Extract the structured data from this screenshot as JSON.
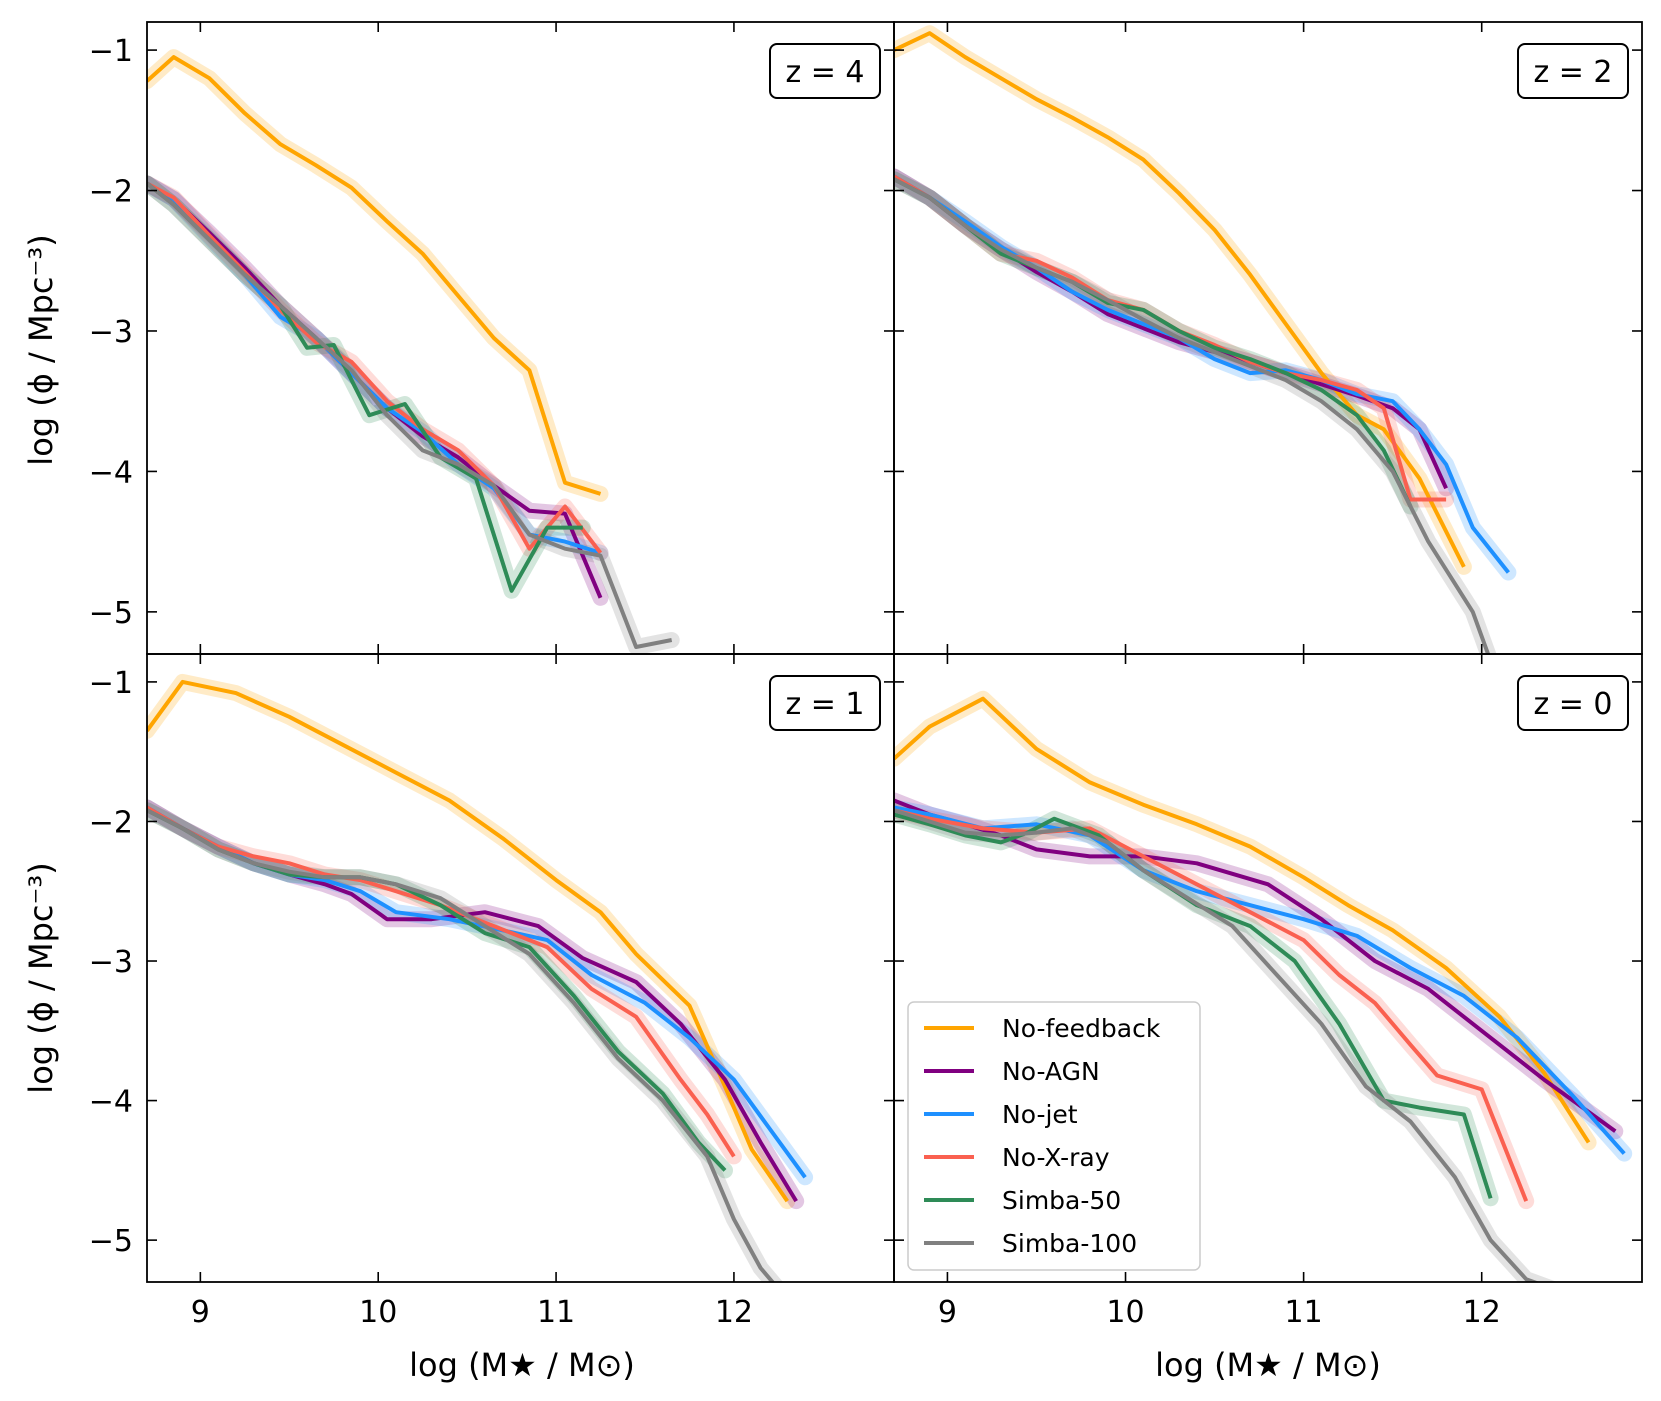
{
  "chart_data": {
    "type": "line",
    "layout": "2x2 grid, shared axes",
    "xlabel": "log (M★ / M⊙)",
    "ylabel": "log (ϕ / Mpc⁻³)",
    "xlim": [
      8.7,
      12.9
    ],
    "ylim": [
      -5.3,
      -0.8
    ],
    "xticks": [
      9,
      10,
      11,
      12
    ],
    "yticks": [
      -1,
      -2,
      -3,
      -4,
      -5
    ],
    "xtick_labels": [
      "9",
      "10",
      "11",
      "12"
    ],
    "ytick_labels": [
      "−1",
      "−2",
      "−3",
      "−4",
      "−5"
    ],
    "legend": {
      "placement": "lower-left of bottom-right panel",
      "entries": [
        "No-feedback",
        "No-AGN",
        "No-jet",
        "No-X-ray",
        "Simba-50",
        "Simba-100"
      ]
    },
    "colors": {
      "No-feedback": "#ffa500",
      "No-AGN": "#800080",
      "No-jet": "#1e90ff",
      "No-X-ray": "#fa6050",
      "Simba-50": "#2e8b57",
      "Simba-100": "#808080"
    },
    "panels": [
      {
        "label": "z = 4",
        "series": [
          {
            "name": "No-feedback",
            "x": [
              8.7,
              8.85,
              9.05,
              9.25,
              9.45,
              9.65,
              9.85,
              10.05,
              10.25,
              10.45,
              10.65,
              10.85,
              11.05,
              11.25
            ],
            "y": [
              -1.22,
              -1.05,
              -1.2,
              -1.45,
              -1.67,
              -1.82,
              -1.98,
              -2.22,
              -2.45,
              -2.75,
              -3.05,
              -3.28,
              -4.08,
              -4.16
            ]
          },
          {
            "name": "No-AGN",
            "x": [
              8.7,
              8.85,
              9.05,
              9.25,
              9.45,
              9.65,
              9.85,
              10.05,
              10.25,
              10.45,
              10.65,
              10.85,
              11.05,
              11.25
            ],
            "y": [
              -1.95,
              -2.06,
              -2.3,
              -2.55,
              -2.82,
              -3.05,
              -3.3,
              -3.55,
              -3.75,
              -3.9,
              -4.1,
              -4.28,
              -4.3,
              -4.9
            ]
          },
          {
            "name": "No-jet",
            "x": [
              8.7,
              8.85,
              9.05,
              9.25,
              9.45,
              9.65,
              9.85,
              10.05,
              10.25,
              10.45,
              10.65,
              10.85,
              11.05,
              11.25
            ],
            "y": [
              -1.95,
              -2.06,
              -2.33,
              -2.6,
              -2.9,
              -3.05,
              -3.3,
              -3.55,
              -3.72,
              -3.95,
              -4.12,
              -4.45,
              -4.5,
              -4.58
            ]
          },
          {
            "name": "No-X-ray",
            "x": [
              8.7,
              8.85,
              9.05,
              9.25,
              9.45,
              9.65,
              9.85,
              10.05,
              10.25,
              10.45,
              10.65,
              10.85,
              11.05,
              11.25
            ],
            "y": [
              -1.95,
              -2.05,
              -2.32,
              -2.58,
              -2.85,
              -3.08,
              -3.22,
              -3.5,
              -3.7,
              -3.85,
              -4.1,
              -4.55,
              -4.25,
              -4.58
            ]
          },
          {
            "name": "Simba-50",
            "x": [
              8.7,
              8.85,
              9.05,
              9.25,
              9.45,
              9.6,
              9.75,
              9.95,
              10.15,
              10.35,
              10.55,
              10.75,
              10.95,
              11.15
            ],
            "y": [
              -1.95,
              -2.1,
              -2.35,
              -2.6,
              -2.82,
              -3.12,
              -3.1,
              -3.6,
              -3.52,
              -3.9,
              -4.05,
              -4.85,
              -4.4,
              -4.4
            ]
          },
          {
            "name": "Simba-100",
            "x": [
              8.7,
              8.85,
              9.05,
              9.25,
              9.45,
              9.65,
              9.85,
              10.05,
              10.25,
              10.45,
              10.65,
              10.85,
              11.05,
              11.25,
              11.45,
              11.65
            ],
            "y": [
              -1.95,
              -2.1,
              -2.35,
              -2.6,
              -2.82,
              -3.05,
              -3.28,
              -3.6,
              -3.85,
              -3.95,
              -4.1,
              -4.45,
              -4.55,
              -4.6,
              -5.25,
              -5.2
            ]
          }
        ]
      },
      {
        "label": "z = 2",
        "series": [
          {
            "name": "No-feedback",
            "x": [
              8.7,
              8.9,
              9.1,
              9.3,
              9.5,
              9.7,
              9.9,
              10.1,
              10.3,
              10.5,
              10.7,
              10.9,
              11.1,
              11.3,
              11.45,
              11.65,
              11.9
            ],
            "y": [
              -1.0,
              -0.88,
              -1.05,
              -1.2,
              -1.35,
              -1.48,
              -1.62,
              -1.78,
              -2.02,
              -2.28,
              -2.6,
              -2.95,
              -3.3,
              -3.6,
              -3.7,
              -4.05,
              -4.68
            ]
          },
          {
            "name": "No-AGN",
            "x": [
              8.7,
              8.9,
              9.1,
              9.3,
              9.5,
              9.7,
              9.9,
              10.1,
              10.3,
              10.5,
              10.7,
              10.9,
              11.1,
              11.3,
              11.5,
              11.65,
              11.8
            ],
            "y": [
              -1.9,
              -2.05,
              -2.25,
              -2.42,
              -2.58,
              -2.72,
              -2.88,
              -2.98,
              -3.08,
              -3.15,
              -3.22,
              -3.3,
              -3.38,
              -3.46,
              -3.55,
              -3.7,
              -4.12
            ]
          },
          {
            "name": "No-jet",
            "x": [
              8.7,
              8.9,
              9.1,
              9.3,
              9.5,
              9.7,
              9.9,
              10.1,
              10.3,
              10.5,
              10.7,
              10.9,
              11.1,
              11.3,
              11.5,
              11.65,
              11.8,
              11.95,
              12.15
            ],
            "y": [
              -1.9,
              -2.05,
              -2.22,
              -2.4,
              -2.55,
              -2.72,
              -2.85,
              -2.95,
              -3.05,
              -3.2,
              -3.3,
              -3.28,
              -3.35,
              -3.45,
              -3.5,
              -3.7,
              -3.95,
              -4.4,
              -4.72
            ]
          },
          {
            "name": "No-X-ray",
            "x": [
              8.7,
              8.9,
              9.1,
              9.3,
              9.5,
              9.7,
              9.9,
              10.1,
              10.3,
              10.5,
              10.7,
              10.9,
              11.1,
              11.3,
              11.45,
              11.6,
              11.8
            ],
            "y": [
              -1.9,
              -2.05,
              -2.25,
              -2.45,
              -2.5,
              -2.62,
              -2.78,
              -2.85,
              -3.0,
              -3.1,
              -3.22,
              -3.3,
              -3.35,
              -3.42,
              -3.55,
              -4.2,
              -4.2
            ]
          },
          {
            "name": "Simba-50",
            "x": [
              8.7,
              8.9,
              9.1,
              9.3,
              9.5,
              9.7,
              9.9,
              10.1,
              10.3,
              10.5,
              10.7,
              10.9,
              11.1,
              11.3,
              11.45,
              11.6
            ],
            "y": [
              -1.92,
              -2.05,
              -2.25,
              -2.45,
              -2.55,
              -2.65,
              -2.8,
              -2.85,
              -3.0,
              -3.12,
              -3.2,
              -3.3,
              -3.42,
              -3.6,
              -3.85,
              -4.25
            ]
          },
          {
            "name": "Simba-100",
            "x": [
              8.7,
              8.9,
              9.1,
              9.3,
              9.5,
              9.7,
              9.9,
              10.1,
              10.3,
              10.5,
              10.7,
              10.9,
              11.1,
              11.3,
              11.5,
              11.7,
              11.95,
              12.05
            ],
            "y": [
              -1.92,
              -2.05,
              -2.25,
              -2.42,
              -2.55,
              -2.65,
              -2.78,
              -2.92,
              -3.05,
              -3.15,
              -3.25,
              -3.35,
              -3.5,
              -3.7,
              -4.0,
              -4.5,
              -5.0,
              -5.35
            ]
          }
        ]
      },
      {
        "label": "z = 1",
        "series": [
          {
            "name": "No-feedback",
            "x": [
              8.7,
              8.9,
              9.2,
              9.5,
              9.8,
              10.1,
              10.4,
              10.7,
              11.0,
              11.25,
              11.45,
              11.75,
              11.95,
              12.1,
              12.3
            ],
            "y": [
              -1.35,
              -1.0,
              -1.08,
              -1.25,
              -1.45,
              -1.65,
              -1.85,
              -2.12,
              -2.42,
              -2.65,
              -2.95,
              -3.32,
              -3.9,
              -4.35,
              -4.72
            ]
          },
          {
            "name": "No-AGN",
            "x": [
              8.7,
              8.9,
              9.1,
              9.3,
              9.5,
              9.7,
              9.85,
              10.05,
              10.3,
              10.6,
              10.9,
              11.15,
              11.45,
              11.7,
              11.95,
              12.15,
              12.35
            ],
            "y": [
              -1.9,
              -2.05,
              -2.18,
              -2.3,
              -2.38,
              -2.45,
              -2.52,
              -2.7,
              -2.7,
              -2.65,
              -2.75,
              -2.98,
              -3.15,
              -3.45,
              -3.85,
              -4.3,
              -4.72
            ]
          },
          {
            "name": "No-jet",
            "x": [
              8.7,
              8.9,
              9.1,
              9.3,
              9.5,
              9.7,
              9.9,
              10.1,
              10.4,
              10.7,
              10.95,
              11.2,
              11.5,
              11.75,
              12.0,
              12.2,
              12.4
            ],
            "y": [
              -1.9,
              -2.05,
              -2.18,
              -2.3,
              -2.38,
              -2.42,
              -2.5,
              -2.65,
              -2.7,
              -2.78,
              -2.85,
              -3.1,
              -3.3,
              -3.55,
              -3.85,
              -4.2,
              -4.55
            ]
          },
          {
            "name": "No-X-ray",
            "x": [
              8.7,
              8.9,
              9.1,
              9.3,
              9.5,
              9.7,
              9.9,
              10.1,
              10.35,
              10.65,
              10.95,
              11.2,
              11.45,
              11.7,
              11.85,
              12.0
            ],
            "y": [
              -1.9,
              -2.05,
              -2.18,
              -2.25,
              -2.3,
              -2.38,
              -2.42,
              -2.5,
              -2.6,
              -2.75,
              -2.9,
              -3.2,
              -3.4,
              -3.85,
              -4.1,
              -4.4
            ]
          },
          {
            "name": "Simba-50",
            "x": [
              8.7,
              8.9,
              9.1,
              9.3,
              9.5,
              9.7,
              9.9,
              10.1,
              10.35,
              10.6,
              10.85,
              11.1,
              11.35,
              11.6,
              11.8,
              11.95
            ],
            "y": [
              -1.92,
              -2.05,
              -2.2,
              -2.3,
              -2.38,
              -2.4,
              -2.4,
              -2.45,
              -2.6,
              -2.8,
              -2.9,
              -3.25,
              -3.65,
              -3.95,
              -4.3,
              -4.5
            ]
          },
          {
            "name": "Simba-100",
            "x": [
              8.7,
              8.9,
              9.1,
              9.3,
              9.5,
              9.7,
              9.9,
              10.1,
              10.35,
              10.6,
              10.85,
              11.1,
              11.35,
              11.6,
              11.85,
              12.0,
              12.15,
              12.25
            ],
            "y": [
              -1.92,
              -2.05,
              -2.2,
              -2.3,
              -2.36,
              -2.4,
              -2.4,
              -2.45,
              -2.55,
              -2.75,
              -2.95,
              -3.3,
              -3.7,
              -4.0,
              -4.4,
              -4.85,
              -5.2,
              -5.35
            ]
          }
        ]
      },
      {
        "label": "z = 0",
        "series": [
          {
            "name": "No-feedback",
            "x": [
              8.7,
              8.9,
              9.2,
              9.5,
              9.8,
              10.1,
              10.4,
              10.7,
              11.0,
              11.25,
              11.5,
              11.8,
              12.1,
              12.35,
              12.6
            ],
            "y": [
              -1.55,
              -1.32,
              -1.12,
              -1.48,
              -1.72,
              -1.88,
              -2.02,
              -2.18,
              -2.4,
              -2.6,
              -2.78,
              -3.05,
              -3.4,
              -3.8,
              -4.3
            ]
          },
          {
            "name": "No-AGN",
            "x": [
              8.7,
              8.9,
              9.1,
              9.3,
              9.5,
              9.8,
              10.1,
              10.4,
              10.8,
              11.1,
              11.4,
              11.7,
              12.0,
              12.35,
              12.75
            ],
            "y": [
              -1.85,
              -1.95,
              -2.02,
              -2.1,
              -2.2,
              -2.25,
              -2.25,
              -2.3,
              -2.45,
              -2.7,
              -3.0,
              -3.2,
              -3.5,
              -3.85,
              -4.22
            ]
          },
          {
            "name": "No-jet",
            "x": [
              8.7,
              8.9,
              9.2,
              9.5,
              9.8,
              10.1,
              10.4,
              10.7,
              11.0,
              11.3,
              11.6,
              11.9,
              12.2,
              12.5,
              12.8
            ],
            "y": [
              -1.9,
              -1.95,
              -2.05,
              -2.02,
              -2.1,
              -2.35,
              -2.5,
              -2.6,
              -2.7,
              -2.82,
              -3.05,
              -3.25,
              -3.55,
              -3.95,
              -4.38
            ]
          },
          {
            "name": "No-X-ray",
            "x": [
              8.7,
              8.9,
              9.2,
              9.5,
              9.8,
              10.1,
              10.4,
              10.7,
              11.0,
              11.2,
              11.4,
              11.6,
              11.75,
              12.0,
              12.25
            ],
            "y": [
              -1.92,
              -1.98,
              -2.05,
              -2.08,
              -2.05,
              -2.25,
              -2.45,
              -2.65,
              -2.85,
              -3.1,
              -3.3,
              -3.6,
              -3.82,
              -3.92,
              -4.72
            ]
          },
          {
            "name": "Simba-50",
            "x": [
              8.7,
              8.9,
              9.1,
              9.3,
              9.45,
              9.6,
              9.85,
              10.1,
              10.4,
              10.7,
              10.95,
              11.2,
              11.45,
              11.65,
              11.9,
              12.05
            ],
            "y": [
              -1.95,
              -2.02,
              -2.1,
              -2.15,
              -2.08,
              -1.98,
              -2.1,
              -2.35,
              -2.6,
              -2.75,
              -3.0,
              -3.45,
              -4.0,
              -4.05,
              -4.1,
              -4.7
            ]
          },
          {
            "name": "Simba-100",
            "x": [
              8.7,
              8.9,
              9.1,
              9.3,
              9.5,
              9.7,
              9.9,
              10.1,
              10.35,
              10.6,
              10.85,
              11.1,
              11.35,
              11.6,
              11.85,
              12.05,
              12.25,
              12.4
            ],
            "y": [
              -1.92,
              -2.0,
              -2.08,
              -2.1,
              -2.08,
              -2.05,
              -2.15,
              -2.35,
              -2.55,
              -2.75,
              -3.1,
              -3.45,
              -3.9,
              -4.15,
              -4.55,
              -5.0,
              -5.28,
              -5.35
            ]
          }
        ]
      }
    ]
  }
}
